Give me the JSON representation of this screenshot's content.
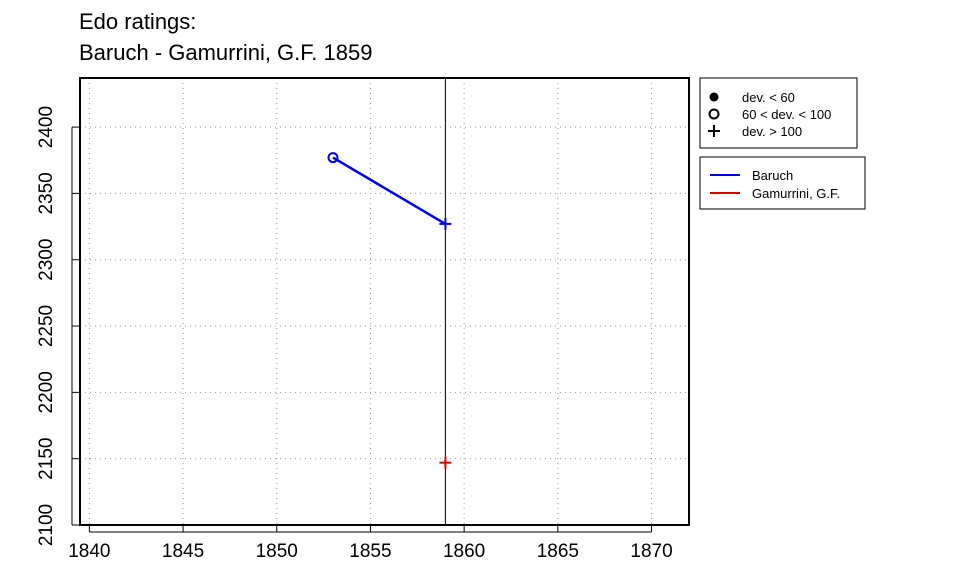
{
  "chart_data": {
    "type": "line",
    "title_lines": [
      "Edo ratings:",
      "Baruch - Gamurrini, G.F. 1859"
    ],
    "xlabel": "",
    "ylabel": "",
    "xlim": [
      1839.5,
      1872
    ],
    "ylim": [
      2100,
      2437
    ],
    "x_ticks": [
      1840,
      1845,
      1850,
      1855,
      1860,
      1865,
      1870
    ],
    "y_ticks": [
      2100,
      2150,
      2200,
      2250,
      2300,
      2350,
      2400
    ],
    "grid": true,
    "reference_line_x": 1859,
    "series": [
      {
        "name": "Baruch",
        "color": "#0000ee",
        "points": [
          {
            "x": 1853,
            "y": 2377,
            "dev": "60 < dev. < 100"
          },
          {
            "x": 1859,
            "y": 2327,
            "dev": "dev. > 100"
          }
        ]
      },
      {
        "name": "Gamurrini, G.F.",
        "color": "#dd0000",
        "points": [
          {
            "x": 1859,
            "y": 2147,
            "dev": "dev. > 100"
          }
        ]
      }
    ],
    "marker_legend": [
      {
        "label": "dev. < 60",
        "symbol": "filled-circle"
      },
      {
        "label": "60 < dev. < 100",
        "symbol": "open-circle"
      },
      {
        "label": "dev. > 100",
        "symbol": "plus"
      }
    ],
    "legend_placement": "right"
  }
}
